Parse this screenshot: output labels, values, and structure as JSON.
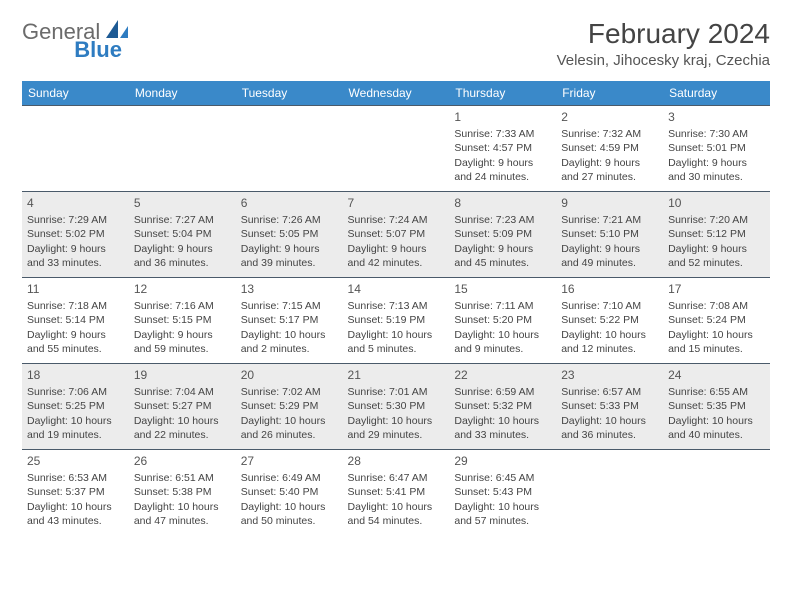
{
  "logo": {
    "general": "General",
    "blue": "Blue"
  },
  "title": "February 2024",
  "location": "Velesin, Jihocesky kraj, Czechia",
  "colors": {
    "header_bg": "#3a89c9",
    "header_text": "#ffffff",
    "alt_row_bg": "#ececec",
    "border": "#4a5a6a",
    "text": "#444444",
    "logo_gray": "#6b6b6b",
    "logo_blue": "#2e7cc1"
  },
  "day_headers": [
    "Sunday",
    "Monday",
    "Tuesday",
    "Wednesday",
    "Thursday",
    "Friday",
    "Saturday"
  ],
  "weeks": [
    {
      "alt": false,
      "cells": [
        null,
        null,
        null,
        null,
        {
          "n": "1",
          "sr": "7:33 AM",
          "ss": "4:57 PM",
          "dl": "9 hours and 24 minutes."
        },
        {
          "n": "2",
          "sr": "7:32 AM",
          "ss": "4:59 PM",
          "dl": "9 hours and 27 minutes."
        },
        {
          "n": "3",
          "sr": "7:30 AM",
          "ss": "5:01 PM",
          "dl": "9 hours and 30 minutes."
        }
      ]
    },
    {
      "alt": true,
      "cells": [
        {
          "n": "4",
          "sr": "7:29 AM",
          "ss": "5:02 PM",
          "dl": "9 hours and 33 minutes."
        },
        {
          "n": "5",
          "sr": "7:27 AM",
          "ss": "5:04 PM",
          "dl": "9 hours and 36 minutes."
        },
        {
          "n": "6",
          "sr": "7:26 AM",
          "ss": "5:05 PM",
          "dl": "9 hours and 39 minutes."
        },
        {
          "n": "7",
          "sr": "7:24 AM",
          "ss": "5:07 PM",
          "dl": "9 hours and 42 minutes."
        },
        {
          "n": "8",
          "sr": "7:23 AM",
          "ss": "5:09 PM",
          "dl": "9 hours and 45 minutes."
        },
        {
          "n": "9",
          "sr": "7:21 AM",
          "ss": "5:10 PM",
          "dl": "9 hours and 49 minutes."
        },
        {
          "n": "10",
          "sr": "7:20 AM",
          "ss": "5:12 PM",
          "dl": "9 hours and 52 minutes."
        }
      ]
    },
    {
      "alt": false,
      "cells": [
        {
          "n": "11",
          "sr": "7:18 AM",
          "ss": "5:14 PM",
          "dl": "9 hours and 55 minutes."
        },
        {
          "n": "12",
          "sr": "7:16 AM",
          "ss": "5:15 PM",
          "dl": "9 hours and 59 minutes."
        },
        {
          "n": "13",
          "sr": "7:15 AM",
          "ss": "5:17 PM",
          "dl": "10 hours and 2 minutes."
        },
        {
          "n": "14",
          "sr": "7:13 AM",
          "ss": "5:19 PM",
          "dl": "10 hours and 5 minutes."
        },
        {
          "n": "15",
          "sr": "7:11 AM",
          "ss": "5:20 PM",
          "dl": "10 hours and 9 minutes."
        },
        {
          "n": "16",
          "sr": "7:10 AM",
          "ss": "5:22 PM",
          "dl": "10 hours and 12 minutes."
        },
        {
          "n": "17",
          "sr": "7:08 AM",
          "ss": "5:24 PM",
          "dl": "10 hours and 15 minutes."
        }
      ]
    },
    {
      "alt": true,
      "cells": [
        {
          "n": "18",
          "sr": "7:06 AM",
          "ss": "5:25 PM",
          "dl": "10 hours and 19 minutes."
        },
        {
          "n": "19",
          "sr": "7:04 AM",
          "ss": "5:27 PM",
          "dl": "10 hours and 22 minutes."
        },
        {
          "n": "20",
          "sr": "7:02 AM",
          "ss": "5:29 PM",
          "dl": "10 hours and 26 minutes."
        },
        {
          "n": "21",
          "sr": "7:01 AM",
          "ss": "5:30 PM",
          "dl": "10 hours and 29 minutes."
        },
        {
          "n": "22",
          "sr": "6:59 AM",
          "ss": "5:32 PM",
          "dl": "10 hours and 33 minutes."
        },
        {
          "n": "23",
          "sr": "6:57 AM",
          "ss": "5:33 PM",
          "dl": "10 hours and 36 minutes."
        },
        {
          "n": "24",
          "sr": "6:55 AM",
          "ss": "5:35 PM",
          "dl": "10 hours and 40 minutes."
        }
      ]
    },
    {
      "alt": false,
      "cells": [
        {
          "n": "25",
          "sr": "6:53 AM",
          "ss": "5:37 PM",
          "dl": "10 hours and 43 minutes."
        },
        {
          "n": "26",
          "sr": "6:51 AM",
          "ss": "5:38 PM",
          "dl": "10 hours and 47 minutes."
        },
        {
          "n": "27",
          "sr": "6:49 AM",
          "ss": "5:40 PM",
          "dl": "10 hours and 50 minutes."
        },
        {
          "n": "28",
          "sr": "6:47 AM",
          "ss": "5:41 PM",
          "dl": "10 hours and 54 minutes."
        },
        {
          "n": "29",
          "sr": "6:45 AM",
          "ss": "5:43 PM",
          "dl": "10 hours and 57 minutes."
        },
        null,
        null
      ]
    }
  ],
  "labels": {
    "sunrise": "Sunrise: ",
    "sunset": "Sunset: ",
    "daylight": "Daylight: "
  }
}
